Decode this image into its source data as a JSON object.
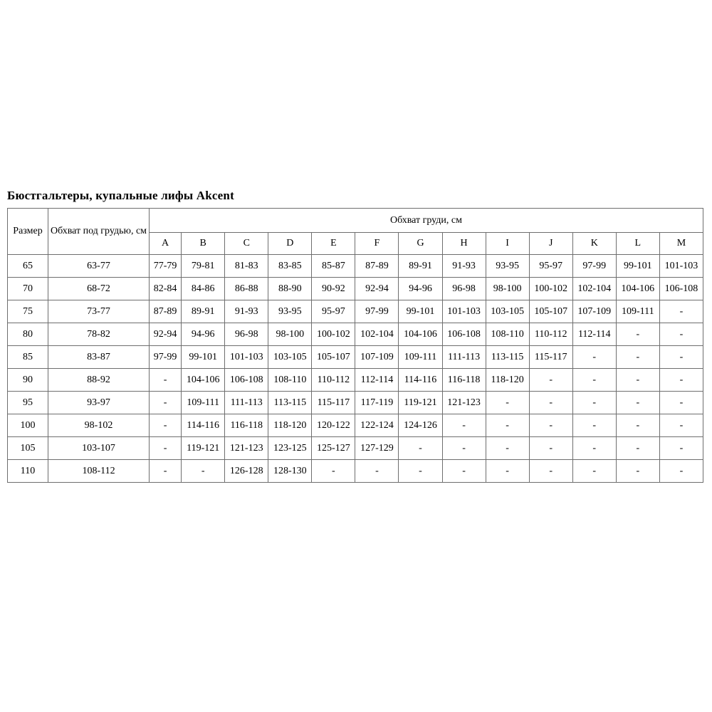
{
  "page": {
    "title": "Бюстгальтеры, купальные лифы Akcent"
  },
  "table": {
    "size_label": "Размер",
    "underbust_label": "Обхват под грудью, см",
    "bust_label": "Обхват груди, см",
    "cup_columns": [
      "A",
      "B",
      "C",
      "D",
      "E",
      "F",
      "G",
      "H",
      "I",
      "J",
      "K",
      "L",
      "M"
    ],
    "rows": [
      {
        "size": "65",
        "underbust": "63-77",
        "cups": [
          "77-79",
          "79-81",
          "81-83",
          "83-85",
          "85-87",
          "87-89",
          "89-91",
          "91-93",
          "93-95",
          "95-97",
          "97-99",
          "99-101",
          "101-103"
        ]
      },
      {
        "size": "70",
        "underbust": "68-72",
        "cups": [
          "82-84",
          "84-86",
          "86-88",
          "88-90",
          "90-92",
          "92-94",
          "94-96",
          "96-98",
          "98-100",
          "100-102",
          "102-104",
          "104-106",
          "106-108"
        ]
      },
      {
        "size": "75",
        "underbust": "73-77",
        "cups": [
          "87-89",
          "89-91",
          "91-93",
          "93-95",
          "95-97",
          "97-99",
          "99-101",
          "101-103",
          "103-105",
          "105-107",
          "107-109",
          "109-111",
          "-"
        ]
      },
      {
        "size": "80",
        "underbust": "78-82",
        "cups": [
          "92-94",
          "94-96",
          "96-98",
          "98-100",
          "100-102",
          "102-104",
          "104-106",
          "106-108",
          "108-110",
          "110-112",
          "112-114",
          "-",
          "-"
        ]
      },
      {
        "size": "85",
        "underbust": "83-87",
        "cups": [
          "97-99",
          "99-101",
          "101-103",
          "103-105",
          "105-107",
          "107-109",
          "109-111",
          "111-113",
          "113-115",
          "115-117",
          "-",
          "-",
          "-"
        ]
      },
      {
        "size": "90",
        "underbust": "88-92",
        "cups": [
          "-",
          "104-106",
          "106-108",
          "108-110",
          "110-112",
          "112-114",
          "114-116",
          "116-118",
          "118-120",
          "-",
          "-",
          "-",
          "-"
        ]
      },
      {
        "size": "95",
        "underbust": "93-97",
        "cups": [
          "-",
          "109-111",
          "111-113",
          "113-115",
          "115-117",
          "117-119",
          "119-121",
          "121-123",
          "-",
          "-",
          "-",
          "-",
          "-"
        ]
      },
      {
        "size": "100",
        "underbust": "98-102",
        "cups": [
          "-",
          "114-116",
          "116-118",
          "118-120",
          "120-122",
          "122-124",
          "124-126",
          "-",
          "-",
          "-",
          "-",
          "-",
          "-"
        ]
      },
      {
        "size": "105",
        "underbust": "103-107",
        "cups": [
          "-",
          "119-121",
          "121-123",
          "123-125",
          "125-127",
          "127-129",
          "-",
          "-",
          "-",
          "-",
          "-",
          "-",
          "-"
        ]
      },
      {
        "size": "110",
        "underbust": "108-112",
        "cups": [
          "-",
          "-",
          "126-128",
          "128-130",
          "-",
          "-",
          "-",
          "-",
          "-",
          "-",
          "-",
          "-",
          "-"
        ]
      }
    ]
  }
}
